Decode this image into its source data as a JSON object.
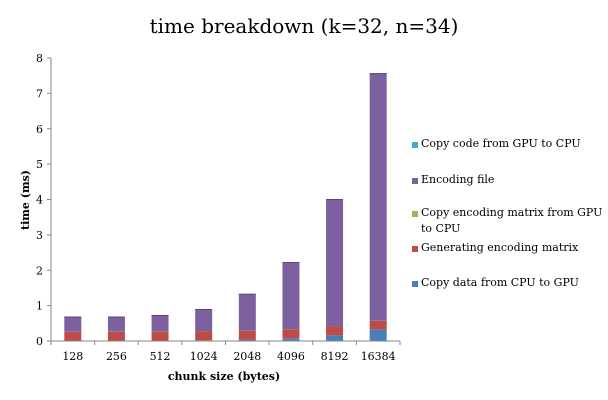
{
  "chart_data": {
    "type": "bar",
    "stacked": true,
    "title": "time breakdown (k=32, n=34)",
    "xlabel": "chunk size (bytes)",
    "ylabel": "time (ms)",
    "ylim": [
      0,
      8
    ],
    "yticks": [
      "0",
      "1",
      "2",
      "3",
      "4",
      "5",
      "6",
      "7",
      "8"
    ],
    "categories": [
      "128",
      "256",
      "512",
      "1024",
      "2048",
      "4096",
      "8192",
      "16384"
    ],
    "grid": false,
    "legend_position": "right",
    "series": [
      {
        "name": "Copy data from CPU to GPU",
        "color": "#4a7ebb",
        "values": [
          0.01,
          0.01,
          0.01,
          0.02,
          0.04,
          0.08,
          0.16,
          0.32
        ]
      },
      {
        "name": "Generating encoding matrix",
        "color": "#be4b48",
        "values": [
          0.25,
          0.25,
          0.25,
          0.25,
          0.25,
          0.25,
          0.25,
          0.25
        ]
      },
      {
        "name": "Copy encoding matrix from GPU to CPU",
        "color": "#98b954",
        "values": [
          0.005,
          0.005,
          0.005,
          0.005,
          0.005,
          0.005,
          0.005,
          0.005
        ]
      },
      {
        "name": "Encoding file",
        "color": "#7d60a0",
        "values": [
          0.41,
          0.41,
          0.45,
          0.61,
          1.02,
          1.88,
          3.58,
          6.98
        ]
      },
      {
        "name": "Copy code from GPU to CPU",
        "color": "#46aac5",
        "values": [
          0.005,
          0.005,
          0.005,
          0.005,
          0.005,
          0.005,
          0.005,
          0.005
        ]
      }
    ],
    "legend_order": [
      {
        "name": "Copy code from GPU to CPU",
        "color": "#46aac5"
      },
      {
        "name": "Encoding file",
        "color": "#7d60a0"
      },
      {
        "name": "Copy encoding matrix from GPU to CPU",
        "color": "#98b954"
      },
      {
        "name": "Generating encoding matrix",
        "color": "#be4b48"
      },
      {
        "name": "Copy data from CPU to GPU",
        "color": "#4a7ebb"
      }
    ]
  }
}
